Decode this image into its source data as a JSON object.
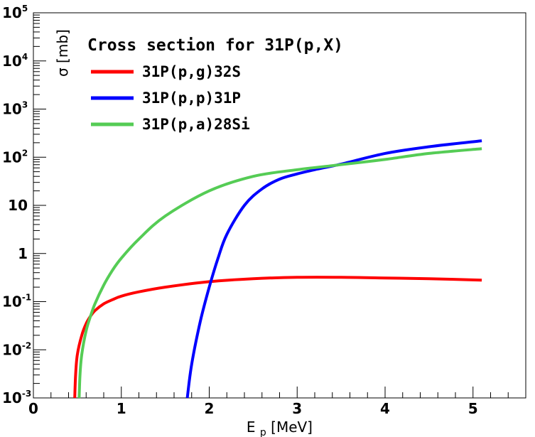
{
  "chart_data": {
    "type": "line",
    "title": "Cross section for 31P(p,X)",
    "xlabel": "E",
    "xlabel_subscript": "p",
    "xlabel_unit": "[MeV]",
    "ylabel": "σ [mb]",
    "xlim": [
      0,
      5.6
    ],
    "ylim": [
      0.001,
      100000
    ],
    "yscale": "log",
    "grid": false,
    "legend_position": "top-left",
    "x_ticks": [
      {
        "value": 0,
        "label": "0"
      },
      {
        "value": 1,
        "label": "1"
      },
      {
        "value": 2,
        "label": "2"
      },
      {
        "value": 3,
        "label": "3"
      },
      {
        "value": 4,
        "label": "4"
      },
      {
        "value": 5,
        "label": "5"
      }
    ],
    "y_ticks": [
      {
        "value": 0.001,
        "base": "10",
        "exp": "-3"
      },
      {
        "value": 0.01,
        "base": "10",
        "exp": "-2"
      },
      {
        "value": 0.1,
        "base": "10",
        "exp": "-1"
      },
      {
        "value": 1,
        "base": "1",
        "exp": ""
      },
      {
        "value": 10,
        "base": "10",
        "exp": ""
      },
      {
        "value": 100,
        "base": "10",
        "exp": "2"
      },
      {
        "value": 1000,
        "base": "10",
        "exp": "3"
      },
      {
        "value": 10000,
        "base": "10",
        "exp": "4"
      },
      {
        "value": 100000,
        "base": "10",
        "exp": "5"
      }
    ],
    "series": [
      {
        "name": "31P(p,g)32S",
        "color": "#ff0000",
        "x": [
          0.47,
          0.48,
          0.5,
          0.55,
          0.6,
          0.65,
          0.7,
          0.8,
          0.9,
          1.0,
          1.2,
          1.5,
          2.0,
          2.5,
          3.0,
          3.5,
          4.0,
          4.5,
          5.1
        ],
        "y": [
          0.001,
          0.003,
          0.008,
          0.02,
          0.035,
          0.05,
          0.065,
          0.09,
          0.11,
          0.13,
          0.16,
          0.2,
          0.26,
          0.3,
          0.32,
          0.32,
          0.31,
          0.3,
          0.28
        ]
      },
      {
        "name": "31P(p,p)31P",
        "color": "#0000ff",
        "x": [
          1.75,
          1.8,
          1.9,
          2.0,
          2.1,
          2.2,
          2.4,
          2.6,
          2.8,
          3.0,
          3.2,
          3.5,
          4.0,
          4.5,
          5.1
        ],
        "y": [
          0.001,
          0.005,
          0.04,
          0.2,
          0.8,
          2.5,
          10,
          22,
          35,
          45,
          55,
          72,
          120,
          165,
          220
        ]
      },
      {
        "name": "31P(p,a)28Si",
        "color": "#55cc55",
        "x": [
          0.52,
          0.53,
          0.55,
          0.6,
          0.65,
          0.7,
          0.8,
          0.9,
          1.0,
          1.2,
          1.5,
          2.0,
          2.5,
          3.0,
          3.5,
          4.0,
          4.5,
          5.1
        ],
        "y": [
          0.001,
          0.003,
          0.008,
          0.025,
          0.05,
          0.09,
          0.22,
          0.45,
          0.8,
          2.0,
          6,
          20,
          40,
          55,
          70,
          90,
          120,
          150
        ]
      }
    ]
  }
}
